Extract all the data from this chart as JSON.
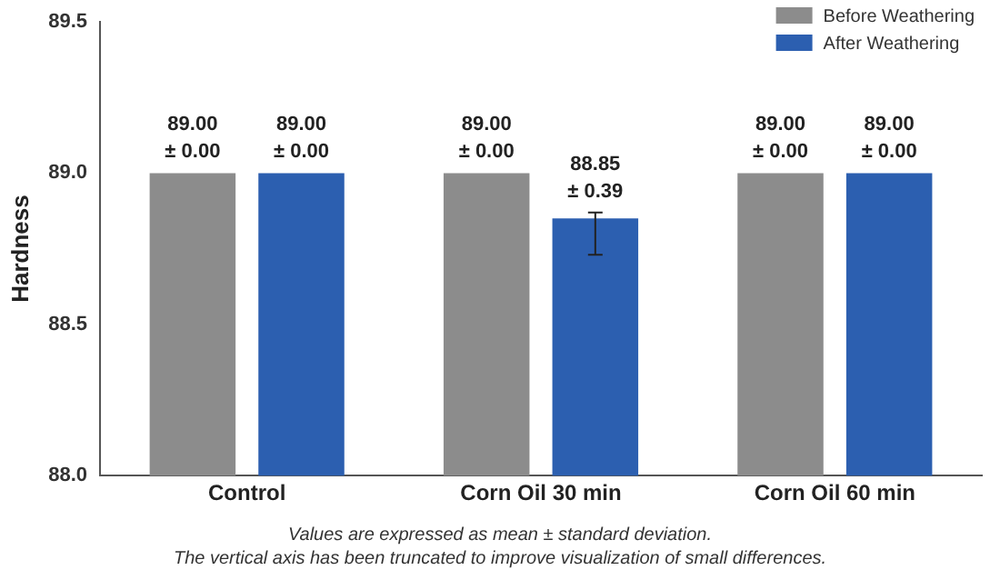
{
  "chart_data": {
    "type": "bar",
    "ylabel": "Hardness",
    "categories": [
      "Control",
      "Corn Oil 30 min",
      "Corn Oil 60 min"
    ],
    "series": [
      {
        "name": "Before Weathering",
        "color": "#8c8c8c",
        "values": [
          89.0,
          89.0,
          89.0
        ],
        "value_labels": [
          "89.00\n± 0.00",
          "89.00\n± 0.00",
          "89.00\n± 0.00"
        ]
      },
      {
        "name": "After Weathering",
        "color": "#2c5fb0",
        "values": [
          89.0,
          88.85,
          89.0
        ],
        "errors": [
          null,
          [
            88.73,
            88.87
          ],
          null
        ],
        "value_labels": [
          "89.00\n± 0.00",
          "88.85\n± 0.39",
          "89.00\n± 0.00"
        ]
      }
    ],
    "ylim": [
      88.0,
      89.5
    ],
    "yticks": [
      {
        "value": 88.0,
        "label": "88.0"
      },
      {
        "value": 88.5,
        "label": "88.5"
      },
      {
        "value": 89.0,
        "label": "89.0"
      },
      {
        "value": 89.5,
        "label": "89.5"
      }
    ],
    "grid": false,
    "legend": "top right",
    "annotations": [
      "Values are expressed as mean ± standard deviation.",
      "The vertical axis has been truncated to improve visualization of small differences."
    ]
  }
}
